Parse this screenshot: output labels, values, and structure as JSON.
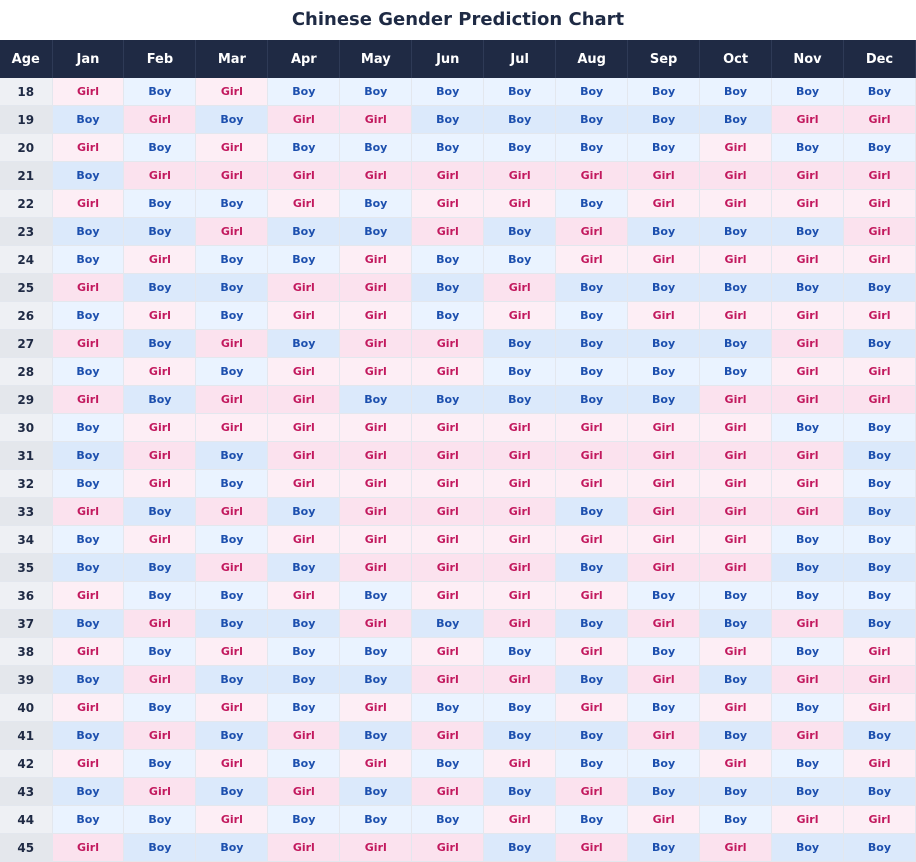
{
  "title": "Chinese Gender Prediction Chart",
  "colors": {
    "header_bg": "#1f2a44",
    "boy_text": "#1c4fae",
    "girl_text": "#c2195e",
    "boy_bg": "#eaf3ff",
    "girl_bg": "#fdeef5"
  },
  "chart_data": {
    "type": "table",
    "title": "Chinese Gender Prediction Chart",
    "row_header": "Age",
    "columns": [
      "Jan",
      "Feb",
      "Mar",
      "Apr",
      "May",
      "Jun",
      "Jul",
      "Aug",
      "Sep",
      "Oct",
      "Nov",
      "Dec"
    ],
    "rows": [
      {
        "age": "18",
        "values": [
          "Girl",
          "Boy",
          "Girl",
          "Boy",
          "Boy",
          "Boy",
          "Boy",
          "Boy",
          "Boy",
          "Boy",
          "Boy",
          "Boy"
        ]
      },
      {
        "age": "19",
        "values": [
          "Boy",
          "Girl",
          "Boy",
          "Girl",
          "Girl",
          "Boy",
          "Boy",
          "Boy",
          "Boy",
          "Boy",
          "Girl",
          "Girl"
        ]
      },
      {
        "age": "20",
        "values": [
          "Girl",
          "Boy",
          "Girl",
          "Boy",
          "Boy",
          "Boy",
          "Boy",
          "Boy",
          "Boy",
          "Girl",
          "Boy",
          "Boy"
        ]
      },
      {
        "age": "21",
        "values": [
          "Boy",
          "Girl",
          "Girl",
          "Girl",
          "Girl",
          "Girl",
          "Girl",
          "Girl",
          "Girl",
          "Girl",
          "Girl",
          "Girl"
        ]
      },
      {
        "age": "22",
        "values": [
          "Girl",
          "Boy",
          "Boy",
          "Girl",
          "Boy",
          "Girl",
          "Girl",
          "Boy",
          "Girl",
          "Girl",
          "Girl",
          "Girl"
        ]
      },
      {
        "age": "23",
        "values": [
          "Boy",
          "Boy",
          "Girl",
          "Boy",
          "Boy",
          "Girl",
          "Boy",
          "Girl",
          "Boy",
          "Boy",
          "Boy",
          "Girl"
        ]
      },
      {
        "age": "24",
        "values": [
          "Boy",
          "Girl",
          "Boy",
          "Boy",
          "Girl",
          "Boy",
          "Boy",
          "Girl",
          "Girl",
          "Girl",
          "Girl",
          "Girl"
        ]
      },
      {
        "age": "25",
        "values": [
          "Girl",
          "Boy",
          "Boy",
          "Girl",
          "Girl",
          "Boy",
          "Girl",
          "Boy",
          "Boy",
          "Boy",
          "Boy",
          "Boy"
        ]
      },
      {
        "age": "26",
        "values": [
          "Boy",
          "Girl",
          "Boy",
          "Girl",
          "Girl",
          "Boy",
          "Girl",
          "Boy",
          "Girl",
          "Girl",
          "Girl",
          "Girl"
        ]
      },
      {
        "age": "27",
        "values": [
          "Girl",
          "Boy",
          "Girl",
          "Boy",
          "Girl",
          "Girl",
          "Boy",
          "Boy",
          "Boy",
          "Boy",
          "Girl",
          "Boy"
        ]
      },
      {
        "age": "28",
        "values": [
          "Boy",
          "Girl",
          "Boy",
          "Girl",
          "Girl",
          "Girl",
          "Boy",
          "Boy",
          "Boy",
          "Boy",
          "Girl",
          "Girl"
        ]
      },
      {
        "age": "29",
        "values": [
          "Girl",
          "Boy",
          "Girl",
          "Girl",
          "Boy",
          "Boy",
          "Boy",
          "Boy",
          "Boy",
          "Girl",
          "Girl",
          "Girl"
        ]
      },
      {
        "age": "30",
        "values": [
          "Boy",
          "Girl",
          "Girl",
          "Girl",
          "Girl",
          "Girl",
          "Girl",
          "Girl",
          "Girl",
          "Girl",
          "Boy",
          "Boy"
        ]
      },
      {
        "age": "31",
        "values": [
          "Boy",
          "Girl",
          "Boy",
          "Girl",
          "Girl",
          "Girl",
          "Girl",
          "Girl",
          "Girl",
          "Girl",
          "Girl",
          "Boy"
        ]
      },
      {
        "age": "32",
        "values": [
          "Boy",
          "Girl",
          "Boy",
          "Girl",
          "Girl",
          "Girl",
          "Girl",
          "Girl",
          "Girl",
          "Girl",
          "Girl",
          "Boy"
        ]
      },
      {
        "age": "33",
        "values": [
          "Girl",
          "Boy",
          "Girl",
          "Boy",
          "Girl",
          "Girl",
          "Girl",
          "Boy",
          "Girl",
          "Girl",
          "Girl",
          "Boy"
        ]
      },
      {
        "age": "34",
        "values": [
          "Boy",
          "Girl",
          "Boy",
          "Girl",
          "Girl",
          "Girl",
          "Girl",
          "Girl",
          "Girl",
          "Girl",
          "Boy",
          "Boy"
        ]
      },
      {
        "age": "35",
        "values": [
          "Boy",
          "Boy",
          "Girl",
          "Boy",
          "Girl",
          "Girl",
          "Girl",
          "Boy",
          "Girl",
          "Girl",
          "Boy",
          "Boy"
        ]
      },
      {
        "age": "36",
        "values": [
          "Girl",
          "Boy",
          "Boy",
          "Girl",
          "Boy",
          "Girl",
          "Girl",
          "Girl",
          "Boy",
          "Boy",
          "Boy",
          "Boy"
        ]
      },
      {
        "age": "37",
        "values": [
          "Boy",
          "Girl",
          "Boy",
          "Boy",
          "Girl",
          "Boy",
          "Girl",
          "Boy",
          "Girl",
          "Boy",
          "Girl",
          "Boy"
        ]
      },
      {
        "age": "38",
        "values": [
          "Girl",
          "Boy",
          "Girl",
          "Boy",
          "Boy",
          "Girl",
          "Boy",
          "Girl",
          "Boy",
          "Girl",
          "Boy",
          "Girl"
        ]
      },
      {
        "age": "39",
        "values": [
          "Boy",
          "Girl",
          "Boy",
          "Boy",
          "Boy",
          "Girl",
          "Girl",
          "Boy",
          "Girl",
          "Boy",
          "Girl",
          "Girl"
        ]
      },
      {
        "age": "40",
        "values": [
          "Girl",
          "Boy",
          "Girl",
          "Boy",
          "Girl",
          "Boy",
          "Boy",
          "Girl",
          "Boy",
          "Girl",
          "Boy",
          "Girl"
        ]
      },
      {
        "age": "41",
        "values": [
          "Boy",
          "Girl",
          "Boy",
          "Girl",
          "Boy",
          "Girl",
          "Boy",
          "Boy",
          "Girl",
          "Boy",
          "Girl",
          "Boy"
        ]
      },
      {
        "age": "42",
        "values": [
          "Girl",
          "Boy",
          "Girl",
          "Boy",
          "Girl",
          "Boy",
          "Girl",
          "Boy",
          "Boy",
          "Girl",
          "Boy",
          "Girl"
        ]
      },
      {
        "age": "43",
        "values": [
          "Boy",
          "Girl",
          "Boy",
          "Girl",
          "Boy",
          "Girl",
          "Boy",
          "Girl",
          "Boy",
          "Boy",
          "Boy",
          "Boy"
        ]
      },
      {
        "age": "44",
        "values": [
          "Boy",
          "Boy",
          "Girl",
          "Boy",
          "Boy",
          "Boy",
          "Girl",
          "Boy",
          "Girl",
          "Boy",
          "Girl",
          "Girl"
        ]
      },
      {
        "age": "45",
        "values": [
          "Girl",
          "Boy",
          "Boy",
          "Girl",
          "Girl",
          "Girl",
          "Boy",
          "Girl",
          "Boy",
          "Girl",
          "Boy",
          "Boy"
        ]
      }
    ]
  }
}
